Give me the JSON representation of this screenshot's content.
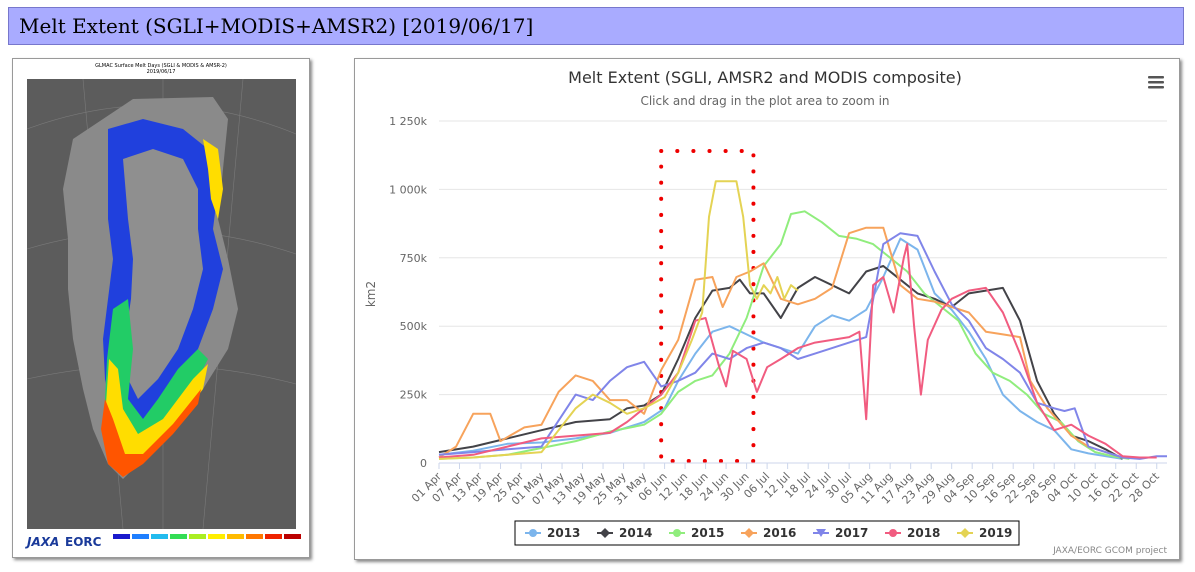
{
  "header": {
    "title": "Melt Extent (SGLI+MODIS+AMSR2) [2019/06/17]"
  },
  "map": {
    "title": "GLMAC Surface Melt Days (SGLI & MODIS & AMSR-2)",
    "date": "2019/06/17",
    "logo_jaxa": "JAXA",
    "logo_eorc": "EORC",
    "legend_colors": [
      "#1a1acc",
      "#1f7fff",
      "#22bbee",
      "#33dd55",
      "#aaee22",
      "#ffee00",
      "#ffbb00",
      "#ff7700",
      "#ee2200",
      "#bb0000"
    ]
  },
  "menu_icon": "hamburger-menu-icon",
  "chart_data": {
    "type": "line",
    "title": "Melt Extent (SGLI, AMSR2 and MODIS composite)",
    "subtitle": "Click and drag in the plot area to zoom in",
    "ylabel": "km2",
    "credit": "JAXA/EORC GCOM project",
    "ylim": [
      0,
      1250000
    ],
    "yticks": [
      0,
      250000,
      500000,
      750000,
      1000000,
      1250000
    ],
    "ytick_labels": [
      "0",
      "250k",
      "500k",
      "750k",
      "1 000k",
      "1 250k"
    ],
    "x_range_days": [
      0,
      213
    ],
    "x_ticks": [
      "01 Apr",
      "07 Apr",
      "13 Apr",
      "19 Apr",
      "25 Apr",
      "01 May",
      "07 May",
      "13 May",
      "19 May",
      "25 May",
      "31 May",
      "06 Jun",
      "12 Jun",
      "18 Jun",
      "24 Jun",
      "30 Jun",
      "06 Jul",
      "12 Jul",
      "18 Jul",
      "24 Jul",
      "30 Jul",
      "05 Aug",
      "11 Aug",
      "17 Aug",
      "23 Aug",
      "29 Aug",
      "04 Sep",
      "10 Sep",
      "16 Sep",
      "22 Sep",
      "28 Sep",
      "04 Oct",
      "10 Oct",
      "16 Oct",
      "22 Oct",
      "28 Oct"
    ],
    "highlight_box": {
      "from": "05 Jun",
      "to": "02 Jul",
      "style": "red dotted"
    },
    "legend_position": "bottom-center",
    "grid": true,
    "series": [
      {
        "name": "2013",
        "color": "#7cb5ec",
        "marker": "circle",
        "points": [
          [
            0,
            30000
          ],
          [
            10,
            45000
          ],
          [
            20,
            70000
          ],
          [
            30,
            75000
          ],
          [
            40,
            90000
          ],
          [
            50,
            110000
          ],
          [
            60,
            150000
          ],
          [
            66,
            200000
          ],
          [
            70,
            300000
          ],
          [
            75,
            400000
          ],
          [
            80,
            480000
          ],
          [
            85,
            500000
          ],
          [
            90,
            470000
          ],
          [
            95,
            440000
          ],
          [
            100,
            420000
          ],
          [
            105,
            400000
          ],
          [
            110,
            500000
          ],
          [
            115,
            540000
          ],
          [
            120,
            520000
          ],
          [
            125,
            560000
          ],
          [
            130,
            680000
          ],
          [
            135,
            820000
          ],
          [
            140,
            780000
          ],
          [
            145,
            620000
          ],
          [
            150,
            560000
          ],
          [
            155,
            480000
          ],
          [
            160,
            380000
          ],
          [
            165,
            250000
          ],
          [
            170,
            190000
          ],
          [
            175,
            150000
          ],
          [
            180,
            120000
          ],
          [
            185,
            50000
          ],
          [
            190,
            35000
          ],
          [
            195,
            25000
          ],
          [
            200,
            15000
          ]
        ]
      },
      {
        "name": "2014",
        "color": "#434348",
        "marker": "diamond",
        "points": [
          [
            0,
            40000
          ],
          [
            10,
            60000
          ],
          [
            20,
            90000
          ],
          [
            30,
            120000
          ],
          [
            40,
            150000
          ],
          [
            50,
            160000
          ],
          [
            55,
            200000
          ],
          [
            60,
            210000
          ],
          [
            65,
            250000
          ],
          [
            70,
            380000
          ],
          [
            75,
            530000
          ],
          [
            80,
            630000
          ],
          [
            85,
            640000
          ],
          [
            88,
            670000
          ],
          [
            91,
            620000
          ],
          [
            95,
            620000
          ],
          [
            100,
            530000
          ],
          [
            105,
            640000
          ],
          [
            110,
            680000
          ],
          [
            115,
            650000
          ],
          [
            120,
            620000
          ],
          [
            125,
            700000
          ],
          [
            130,
            720000
          ],
          [
            135,
            670000
          ],
          [
            140,
            620000
          ],
          [
            145,
            600000
          ],
          [
            150,
            570000
          ],
          [
            155,
            620000
          ],
          [
            160,
            630000
          ],
          [
            165,
            640000
          ],
          [
            170,
            520000
          ],
          [
            175,
            300000
          ],
          [
            180,
            180000
          ],
          [
            185,
            100000
          ],
          [
            190,
            80000
          ],
          [
            195,
            50000
          ],
          [
            200,
            15000
          ]
        ]
      },
      {
        "name": "2015",
        "color": "#90ed7d",
        "marker": "circle",
        "points": [
          [
            0,
            15000
          ],
          [
            10,
            20000
          ],
          [
            20,
            30000
          ],
          [
            30,
            55000
          ],
          [
            40,
            80000
          ],
          [
            50,
            115000
          ],
          [
            60,
            140000
          ],
          [
            65,
            180000
          ],
          [
            70,
            260000
          ],
          [
            75,
            300000
          ],
          [
            80,
            320000
          ],
          [
            85,
            400000
          ],
          [
            90,
            530000
          ],
          [
            95,
            720000
          ],
          [
            100,
            800000
          ],
          [
            103,
            910000
          ],
          [
            107,
            920000
          ],
          [
            112,
            880000
          ],
          [
            117,
            830000
          ],
          [
            122,
            820000
          ],
          [
            127,
            800000
          ],
          [
            132,
            750000
          ],
          [
            137,
            700000
          ],
          [
            142,
            620000
          ],
          [
            147,
            570000
          ],
          [
            152,
            520000
          ],
          [
            157,
            400000
          ],
          [
            162,
            330000
          ],
          [
            167,
            300000
          ],
          [
            172,
            250000
          ],
          [
            177,
            180000
          ],
          [
            182,
            150000
          ],
          [
            187,
            80000
          ],
          [
            192,
            40000
          ],
          [
            197,
            25000
          ],
          [
            202,
            15000
          ]
        ]
      },
      {
        "name": "2016",
        "color": "#f7a35c",
        "marker": "diamond",
        "points": [
          [
            0,
            20000
          ],
          [
            5,
            60000
          ],
          [
            10,
            180000
          ],
          [
            15,
            180000
          ],
          [
            18,
            80000
          ],
          [
            25,
            130000
          ],
          [
            30,
            140000
          ],
          [
            35,
            260000
          ],
          [
            40,
            320000
          ],
          [
            45,
            300000
          ],
          [
            50,
            230000
          ],
          [
            55,
            230000
          ],
          [
            60,
            180000
          ],
          [
            65,
            340000
          ],
          [
            70,
            450000
          ],
          [
            75,
            670000
          ],
          [
            80,
            680000
          ],
          [
            83,
            570000
          ],
          [
            87,
            680000
          ],
          [
            91,
            700000
          ],
          [
            95,
            730000
          ],
          [
            100,
            600000
          ],
          [
            105,
            580000
          ],
          [
            110,
            600000
          ],
          [
            115,
            640000
          ],
          [
            120,
            840000
          ],
          [
            125,
            860000
          ],
          [
            130,
            860000
          ],
          [
            135,
            650000
          ],
          [
            140,
            600000
          ],
          [
            145,
            590000
          ],
          [
            150,
            570000
          ],
          [
            155,
            550000
          ],
          [
            160,
            480000
          ],
          [
            165,
            470000
          ],
          [
            170,
            460000
          ],
          [
            173,
            300000
          ],
          [
            178,
            200000
          ],
          [
            185,
            100000
          ],
          [
            190,
            60000
          ],
          [
            195,
            40000
          ],
          [
            200,
            20000
          ]
        ]
      },
      {
        "name": "2017",
        "color": "#8085e9",
        "marker": "triangle-down",
        "points": [
          [
            0,
            30000
          ],
          [
            10,
            40000
          ],
          [
            20,
            50000
          ],
          [
            30,
            60000
          ],
          [
            40,
            250000
          ],
          [
            45,
            230000
          ],
          [
            50,
            300000
          ],
          [
            55,
            350000
          ],
          [
            60,
            370000
          ],
          [
            65,
            280000
          ],
          [
            70,
            300000
          ],
          [
            75,
            330000
          ],
          [
            80,
            400000
          ],
          [
            85,
            380000
          ],
          [
            90,
            420000
          ],
          [
            95,
            440000
          ],
          [
            100,
            420000
          ],
          [
            105,
            380000
          ],
          [
            110,
            400000
          ],
          [
            115,
            420000
          ],
          [
            120,
            440000
          ],
          [
            125,
            460000
          ],
          [
            130,
            800000
          ],
          [
            135,
            840000
          ],
          [
            140,
            830000
          ],
          [
            145,
            700000
          ],
          [
            150,
            580000
          ],
          [
            155,
            520000
          ],
          [
            160,
            420000
          ],
          [
            165,
            380000
          ],
          [
            170,
            330000
          ],
          [
            175,
            220000
          ],
          [
            180,
            200000
          ],
          [
            183,
            190000
          ],
          [
            186,
            200000
          ],
          [
            190,
            60000
          ],
          [
            195,
            40000
          ],
          [
            200,
            20000
          ],
          [
            205,
            15000
          ],
          [
            210,
            25000
          ],
          [
            213,
            25000
          ]
        ]
      },
      {
        "name": "2018",
        "color": "#f15c80",
        "marker": "circle",
        "points": [
          [
            0,
            20000
          ],
          [
            10,
            30000
          ],
          [
            20,
            60000
          ],
          [
            30,
            90000
          ],
          [
            40,
            100000
          ],
          [
            50,
            110000
          ],
          [
            55,
            150000
          ],
          [
            60,
            200000
          ],
          [
            65,
            250000
          ],
          [
            70,
            330000
          ],
          [
            75,
            520000
          ],
          [
            78,
            530000
          ],
          [
            82,
            350000
          ],
          [
            84,
            280000
          ],
          [
            86,
            410000
          ],
          [
            90,
            380000
          ],
          [
            93,
            260000
          ],
          [
            96,
            350000
          ],
          [
            100,
            380000
          ],
          [
            105,
            420000
          ],
          [
            110,
            440000
          ],
          [
            115,
            450000
          ],
          [
            120,
            460000
          ],
          [
            123,
            480000
          ],
          [
            125,
            160000
          ],
          [
            127,
            650000
          ],
          [
            130,
            680000
          ],
          [
            133,
            550000
          ],
          [
            136,
            750000
          ],
          [
            137,
            800000
          ],
          [
            139,
            500000
          ],
          [
            141,
            250000
          ],
          [
            143,
            450000
          ],
          [
            147,
            560000
          ],
          [
            150,
            600000
          ],
          [
            155,
            630000
          ],
          [
            160,
            640000
          ],
          [
            165,
            550000
          ],
          [
            170,
            400000
          ],
          [
            175,
            220000
          ],
          [
            180,
            120000
          ],
          [
            185,
            140000
          ],
          [
            190,
            100000
          ],
          [
            195,
            70000
          ],
          [
            200,
            25000
          ],
          [
            205,
            20000
          ],
          [
            210,
            20000
          ]
        ]
      },
      {
        "name": "2019",
        "color": "#e4d354",
        "marker": "diamond",
        "points": [
          [
            0,
            15000
          ],
          [
            10,
            20000
          ],
          [
            20,
            30000
          ],
          [
            30,
            40000
          ],
          [
            40,
            200000
          ],
          [
            45,
            250000
          ],
          [
            50,
            220000
          ],
          [
            55,
            180000
          ],
          [
            60,
            200000
          ],
          [
            66,
            240000
          ],
          [
            70,
            330000
          ],
          [
            74,
            450000
          ],
          [
            77,
            550000
          ],
          [
            79,
            900000
          ],
          [
            81,
            1030000
          ],
          [
            84,
            1030000
          ],
          [
            87,
            1030000
          ],
          [
            89,
            900000
          ],
          [
            91,
            650000
          ],
          [
            93,
            600000
          ],
          [
            95,
            650000
          ],
          [
            97,
            620000
          ],
          [
            99,
            680000
          ],
          [
            101,
            600000
          ],
          [
            103,
            650000
          ],
          [
            105,
            630000
          ]
        ]
      }
    ]
  }
}
